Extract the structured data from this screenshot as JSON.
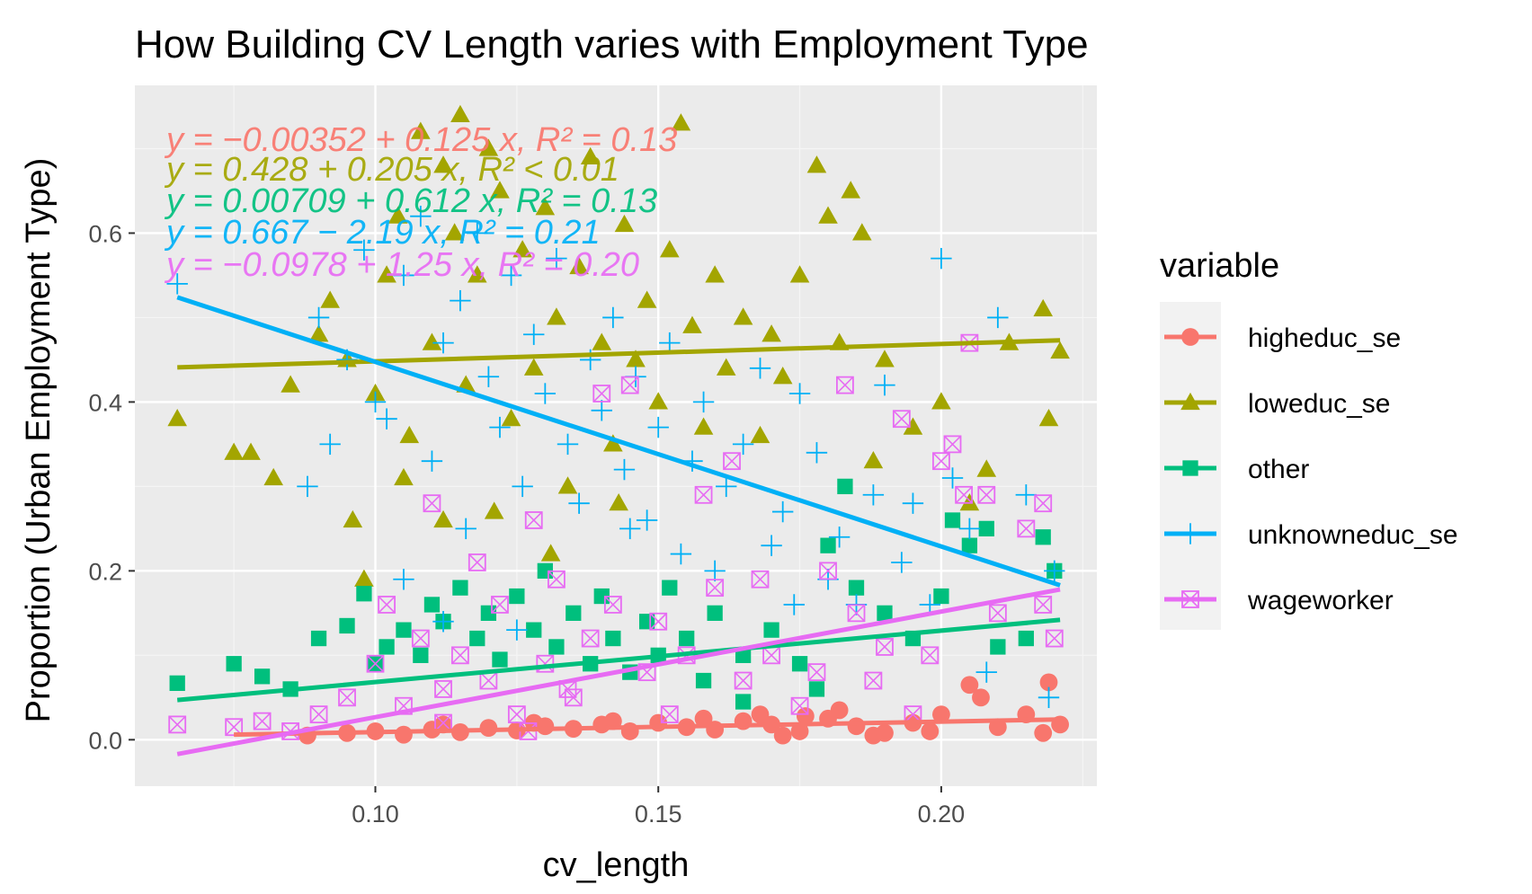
{
  "chart_data": {
    "type": "scatter",
    "title": "How Building CV Length varies with Employment Type",
    "xlabel": "cv_length",
    "ylabel": "Proportion (Urban Employment Type)",
    "xlim": [
      0.0575,
      0.2275
    ],
    "ylim": [
      -0.055,
      0.775
    ],
    "x_ticks": [
      0.1,
      0.15,
      0.2
    ],
    "x_tick_labels": [
      "0.10",
      "0.15",
      "0.20"
    ],
    "y_ticks": [
      0.0,
      0.2,
      0.4,
      0.6
    ],
    "y_tick_labels": [
      "0.0",
      "0.2",
      "0.4",
      "0.6"
    ],
    "grid": true,
    "legend": {
      "title": "variable",
      "position": "right"
    },
    "series": [
      {
        "name": "higheduc_se",
        "color": "#F8766D",
        "shape": "circle",
        "equation": "y = −0.00352 + 0.125 x,  R² = 0.13",
        "fit": {
          "x": [
            0.075,
            0.221
          ],
          "y": [
            0.006,
            0.024
          ]
        },
        "points": [
          [
            0.088,
            0.005
          ],
          [
            0.095,
            0.008
          ],
          [
            0.1,
            0.01
          ],
          [
            0.105,
            0.006
          ],
          [
            0.11,
            0.012
          ],
          [
            0.115,
            0.009
          ],
          [
            0.12,
            0.014
          ],
          [
            0.125,
            0.011
          ],
          [
            0.13,
            0.016
          ],
          [
            0.135,
            0.013
          ],
          [
            0.14,
            0.018
          ],
          [
            0.145,
            0.01
          ],
          [
            0.15,
            0.02
          ],
          [
            0.155,
            0.015
          ],
          [
            0.16,
            0.012
          ],
          [
            0.165,
            0.022
          ],
          [
            0.17,
            0.018
          ],
          [
            0.175,
            0.01
          ],
          [
            0.18,
            0.025
          ],
          [
            0.185,
            0.016
          ],
          [
            0.19,
            0.008
          ],
          [
            0.195,
            0.02
          ],
          [
            0.2,
            0.03
          ],
          [
            0.205,
            0.065
          ],
          [
            0.207,
            0.05
          ],
          [
            0.21,
            0.015
          ],
          [
            0.215,
            0.03
          ],
          [
            0.219,
            0.068
          ],
          [
            0.218,
            0.008
          ],
          [
            0.221,
            0.018
          ],
          [
            0.182,
            0.035
          ],
          [
            0.176,
            0.028
          ],
          [
            0.168,
            0.03
          ],
          [
            0.158,
            0.025
          ],
          [
            0.142,
            0.022
          ],
          [
            0.128,
            0.02
          ],
          [
            0.112,
            0.018
          ],
          [
            0.198,
            0.01
          ],
          [
            0.188,
            0.005
          ],
          [
            0.172,
            0.005
          ]
        ]
      },
      {
        "name": "loweduc_se",
        "color": "#A3A500",
        "shape": "triangle",
        "equation": "y = 0.428 + 0.205 x,  R² < 0.01",
        "fit": {
          "x": [
            0.065,
            0.221
          ],
          "y": [
            0.441,
            0.473
          ]
        },
        "points": [
          [
            0.065,
            0.38
          ],
          [
            0.075,
            0.34
          ],
          [
            0.078,
            0.34
          ],
          [
            0.082,
            0.31
          ],
          [
            0.085,
            0.42
          ],
          [
            0.09,
            0.48
          ],
          [
            0.092,
            0.52
          ],
          [
            0.095,
            0.45
          ],
          [
            0.098,
            0.19
          ],
          [
            0.1,
            0.41
          ],
          [
            0.102,
            0.55
          ],
          [
            0.104,
            0.62
          ],
          [
            0.106,
            0.36
          ],
          [
            0.108,
            0.72
          ],
          [
            0.11,
            0.47
          ],
          [
            0.112,
            0.68
          ],
          [
            0.114,
            0.6
          ],
          [
            0.115,
            0.74
          ],
          [
            0.116,
            0.42
          ],
          [
            0.118,
            0.55
          ],
          [
            0.12,
            0.7
          ],
          [
            0.122,
            0.65
          ],
          [
            0.124,
            0.38
          ],
          [
            0.126,
            0.58
          ],
          [
            0.128,
            0.44
          ],
          [
            0.13,
            0.63
          ],
          [
            0.132,
            0.5
          ],
          [
            0.134,
            0.3
          ],
          [
            0.136,
            0.56
          ],
          [
            0.138,
            0.69
          ],
          [
            0.14,
            0.47
          ],
          [
            0.142,
            0.35
          ],
          [
            0.144,
            0.61
          ],
          [
            0.146,
            0.45
          ],
          [
            0.148,
            0.52
          ],
          [
            0.15,
            0.4
          ],
          [
            0.152,
            0.58
          ],
          [
            0.154,
            0.73
          ],
          [
            0.156,
            0.49
          ],
          [
            0.158,
            0.37
          ],
          [
            0.16,
            0.55
          ],
          [
            0.162,
            0.44
          ],
          [
            0.165,
            0.5
          ],
          [
            0.168,
            0.36
          ],
          [
            0.17,
            0.48
          ],
          [
            0.172,
            0.43
          ],
          [
            0.175,
            0.55
          ],
          [
            0.178,
            0.68
          ],
          [
            0.18,
            0.62
          ],
          [
            0.182,
            0.47
          ],
          [
            0.184,
            0.65
          ],
          [
            0.186,
            0.6
          ],
          [
            0.188,
            0.33
          ],
          [
            0.19,
            0.45
          ],
          [
            0.195,
            0.37
          ],
          [
            0.2,
            0.4
          ],
          [
            0.205,
            0.28
          ],
          [
            0.208,
            0.32
          ],
          [
            0.212,
            0.47
          ],
          [
            0.218,
            0.51
          ],
          [
            0.219,
            0.38
          ],
          [
            0.221,
            0.46
          ],
          [
            0.096,
            0.26
          ],
          [
            0.105,
            0.31
          ],
          [
            0.121,
            0.27
          ],
          [
            0.131,
            0.22
          ],
          [
            0.112,
            0.26
          ],
          [
            0.143,
            0.28
          ]
        ]
      },
      {
        "name": "other",
        "color": "#00BF7D",
        "shape": "square",
        "equation": "y = 0.00709 + 0.612 x,  R² = 0.13",
        "fit": {
          "x": [
            0.065,
            0.221
          ],
          "y": [
            0.047,
            0.142
          ]
        },
        "points": [
          [
            0.065,
            0.067
          ],
          [
            0.075,
            0.09
          ],
          [
            0.08,
            0.075
          ],
          [
            0.085,
            0.06
          ],
          [
            0.09,
            0.12
          ],
          [
            0.095,
            0.135
          ],
          [
            0.098,
            0.173
          ],
          [
            0.1,
            0.09
          ],
          [
            0.102,
            0.11
          ],
          [
            0.105,
            0.13
          ],
          [
            0.108,
            0.1
          ],
          [
            0.11,
            0.16
          ],
          [
            0.112,
            0.14
          ],
          [
            0.115,
            0.18
          ],
          [
            0.118,
            0.12
          ],
          [
            0.12,
            0.15
          ],
          [
            0.122,
            0.095
          ],
          [
            0.125,
            0.17
          ],
          [
            0.128,
            0.13
          ],
          [
            0.13,
            0.2
          ],
          [
            0.132,
            0.11
          ],
          [
            0.135,
            0.15
          ],
          [
            0.138,
            0.09
          ],
          [
            0.14,
            0.17
          ],
          [
            0.142,
            0.12
          ],
          [
            0.145,
            0.08
          ],
          [
            0.148,
            0.14
          ],
          [
            0.15,
            0.1
          ],
          [
            0.152,
            0.18
          ],
          [
            0.155,
            0.12
          ],
          [
            0.158,
            0.07
          ],
          [
            0.16,
            0.15
          ],
          [
            0.165,
            0.1
          ],
          [
            0.17,
            0.13
          ],
          [
            0.175,
            0.09
          ],
          [
            0.18,
            0.23
          ],
          [
            0.183,
            0.3
          ],
          [
            0.185,
            0.18
          ],
          [
            0.19,
            0.15
          ],
          [
            0.195,
            0.12
          ],
          [
            0.2,
            0.17
          ],
          [
            0.202,
            0.26
          ],
          [
            0.205,
            0.23
          ],
          [
            0.208,
            0.25
          ],
          [
            0.21,
            0.11
          ],
          [
            0.215,
            0.12
          ],
          [
            0.218,
            0.24
          ],
          [
            0.22,
            0.2
          ],
          [
            0.178,
            0.06
          ],
          [
            0.165,
            0.045
          ]
        ]
      },
      {
        "name": "unknowneduc_se",
        "color": "#00B0F6",
        "shape": "plus",
        "equation": "y = 0.667 − 2.19 x,  R² = 0.21",
        "fit": {
          "x": [
            0.065,
            0.221
          ],
          "y": [
            0.524,
            0.183
          ]
        },
        "points": [
          [
            0.065,
            0.54
          ],
          [
            0.088,
            0.3
          ],
          [
            0.09,
            0.5
          ],
          [
            0.092,
            0.35
          ],
          [
            0.095,
            0.45
          ],
          [
            0.098,
            0.58
          ],
          [
            0.1,
            0.4
          ],
          [
            0.102,
            0.38
          ],
          [
            0.105,
            0.55
          ],
          [
            0.108,
            0.62
          ],
          [
            0.11,
            0.33
          ],
          [
            0.112,
            0.47
          ],
          [
            0.115,
            0.52
          ],
          [
            0.116,
            0.25
          ],
          [
            0.118,
            0.6
          ],
          [
            0.12,
            0.43
          ],
          [
            0.122,
            0.37
          ],
          [
            0.124,
            0.55
          ],
          [
            0.126,
            0.3
          ],
          [
            0.128,
            0.48
          ],
          [
            0.13,
            0.41
          ],
          [
            0.132,
            0.57
          ],
          [
            0.134,
            0.35
          ],
          [
            0.136,
            0.28
          ],
          [
            0.138,
            0.45
          ],
          [
            0.14,
            0.39
          ],
          [
            0.142,
            0.5
          ],
          [
            0.144,
            0.32
          ],
          [
            0.146,
            0.43
          ],
          [
            0.148,
            0.26
          ],
          [
            0.15,
            0.37
          ],
          [
            0.152,
            0.47
          ],
          [
            0.154,
            0.22
          ],
          [
            0.156,
            0.33
          ],
          [
            0.158,
            0.4
          ],
          [
            0.16,
            0.2
          ],
          [
            0.162,
            0.3
          ],
          [
            0.165,
            0.35
          ],
          [
            0.168,
            0.44
          ],
          [
            0.17,
            0.23
          ],
          [
            0.172,
            0.27
          ],
          [
            0.175,
            0.41
          ],
          [
            0.178,
            0.34
          ],
          [
            0.18,
            0.19
          ],
          [
            0.182,
            0.24
          ],
          [
            0.185,
            0.16
          ],
          [
            0.188,
            0.29
          ],
          [
            0.19,
            0.42
          ],
          [
            0.193,
            0.21
          ],
          [
            0.195,
            0.28
          ],
          [
            0.198,
            0.16
          ],
          [
            0.2,
            0.57
          ],
          [
            0.202,
            0.31
          ],
          [
            0.205,
            0.25
          ],
          [
            0.208,
            0.08
          ],
          [
            0.21,
            0.5
          ],
          [
            0.215,
            0.29
          ],
          [
            0.219,
            0.05
          ],
          [
            0.22,
            0.2
          ],
          [
            0.105,
            0.19
          ],
          [
            0.112,
            0.14
          ],
          [
            0.125,
            0.13
          ],
          [
            0.145,
            0.25
          ],
          [
            0.174,
            0.16
          ]
        ]
      },
      {
        "name": "wageworker",
        "color": "#E76BF3",
        "shape": "square-x",
        "equation": "y = −0.0978 + 1.25 x,  R² = 0.20",
        "fit": {
          "x": [
            0.065,
            0.221
          ],
          "y": [
            -0.017,
            0.178
          ]
        },
        "points": [
          [
            0.065,
            0.018
          ],
          [
            0.075,
            0.015
          ],
          [
            0.08,
            0.022
          ],
          [
            0.085,
            0.01
          ],
          [
            0.09,
            0.03
          ],
          [
            0.095,
            0.05
          ],
          [
            0.1,
            0.09
          ],
          [
            0.102,
            0.16
          ],
          [
            0.105,
            0.04
          ],
          [
            0.108,
            0.12
          ],
          [
            0.11,
            0.28
          ],
          [
            0.112,
            0.06
          ],
          [
            0.115,
            0.1
          ],
          [
            0.118,
            0.21
          ],
          [
            0.12,
            0.07
          ],
          [
            0.122,
            0.16
          ],
          [
            0.125,
            0.03
          ],
          [
            0.128,
            0.26
          ],
          [
            0.13,
            0.09
          ],
          [
            0.132,
            0.19
          ],
          [
            0.135,
            0.05
          ],
          [
            0.138,
            0.12
          ],
          [
            0.14,
            0.41
          ],
          [
            0.142,
            0.16
          ],
          [
            0.145,
            0.42
          ],
          [
            0.148,
            0.08
          ],
          [
            0.15,
            0.14
          ],
          [
            0.152,
            0.03
          ],
          [
            0.155,
            0.1
          ],
          [
            0.158,
            0.29
          ],
          [
            0.16,
            0.18
          ],
          [
            0.163,
            0.33
          ],
          [
            0.165,
            0.07
          ],
          [
            0.168,
            0.19
          ],
          [
            0.17,
            0.1
          ],
          [
            0.175,
            0.04
          ],
          [
            0.178,
            0.08
          ],
          [
            0.18,
            0.2
          ],
          [
            0.183,
            0.42
          ],
          [
            0.185,
            0.15
          ],
          [
            0.188,
            0.07
          ],
          [
            0.19,
            0.11
          ],
          [
            0.193,
            0.38
          ],
          [
            0.195,
            0.03
          ],
          [
            0.198,
            0.1
          ],
          [
            0.2,
            0.33
          ],
          [
            0.202,
            0.35
          ],
          [
            0.204,
            0.29
          ],
          [
            0.205,
            0.47
          ],
          [
            0.208,
            0.29
          ],
          [
            0.21,
            0.15
          ],
          [
            0.215,
            0.25
          ],
          [
            0.218,
            0.28
          ],
          [
            0.22,
            0.12
          ],
          [
            0.218,
            0.16
          ],
          [
            0.112,
            0.02
          ],
          [
            0.127,
            0.01
          ],
          [
            0.134,
            0.06
          ]
        ]
      }
    ]
  }
}
